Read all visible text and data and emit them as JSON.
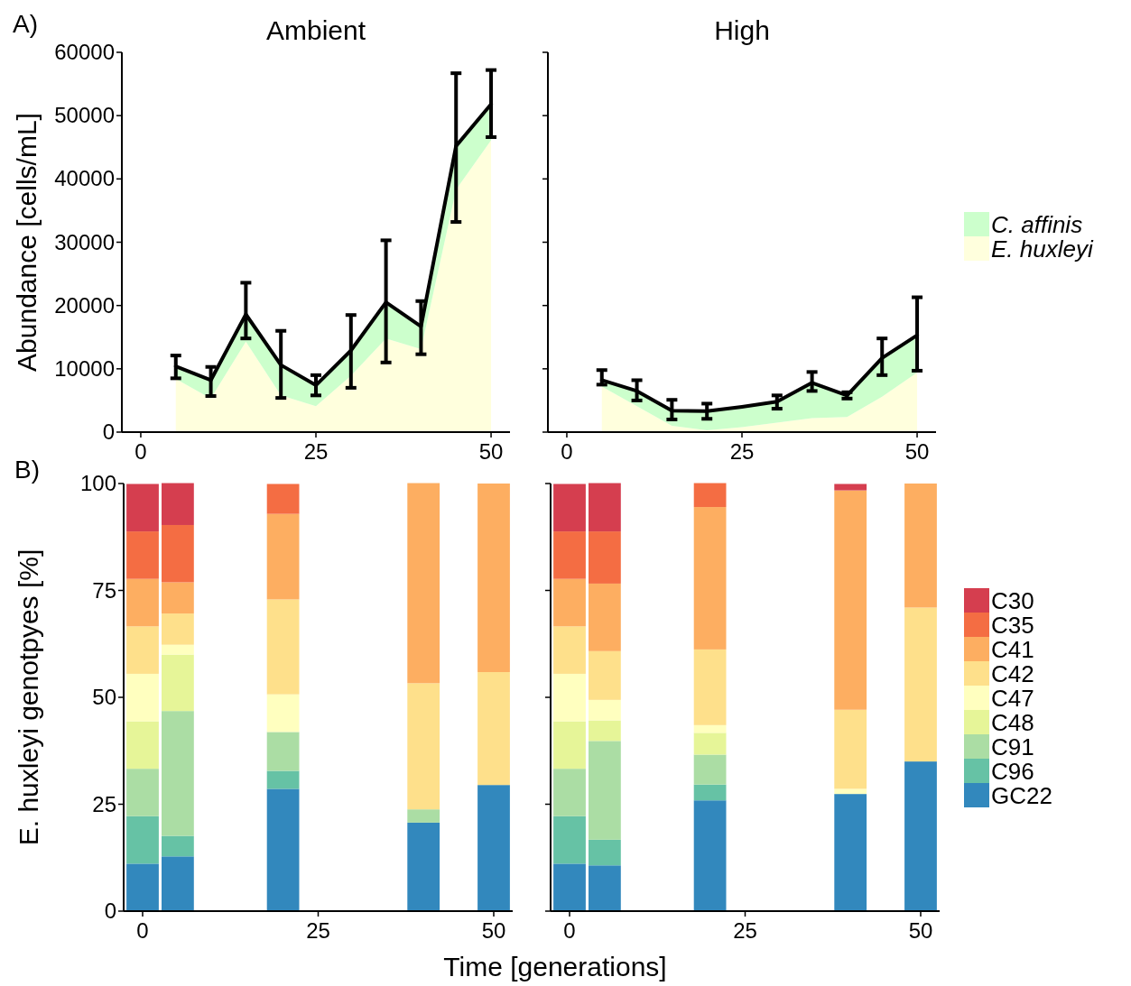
{
  "chart_data": [
    {
      "type": "area",
      "title": "Ambient",
      "ylabel": "Abundance [cells/mL]",
      "annotations": [
        "A)"
      ],
      "stacked": true,
      "x": [
        5,
        10,
        15,
        20,
        25,
        30,
        35,
        40,
        45,
        50
      ],
      "xlim": [
        -2.7,
        52.7
      ],
      "xticks": [
        0,
        25,
        50
      ],
      "ylim": [
        0,
        60000
      ],
      "yticks": [
        0,
        10000,
        20000,
        30000,
        40000,
        50000,
        60000
      ],
      "series": [
        {
          "color": "#ffffdd",
          "values": [
            8400,
            5300,
            14300,
            5800,
            4100,
            8900,
            14800,
            13100,
            38300,
            46100
          ]
        },
        {
          "color": "#ccffcc",
          "values": [
            2000,
            2900,
            4300,
            4800,
            3300,
            4000,
            5700,
            3600,
            6900,
            5700
          ],
          "errors": [
            [
              8500,
              12100
            ],
            [
              5700,
              10300
            ],
            [
              14800,
              23600
            ],
            [
              5400,
              16000
            ],
            [
              5800,
              9000
            ],
            [
              7000,
              18500
            ],
            [
              11000,
              30300
            ],
            [
              12300,
              20700
            ],
            [
              33200,
              56700
            ],
            [
              46600,
              57200
            ]
          ]
        }
      ]
    },
    {
      "type": "area",
      "title": "High",
      "stacked": true,
      "legend": "right",
      "tick_labels": "x",
      "x": [
        5,
        10,
        15,
        20,
        25,
        30,
        35,
        40,
        45,
        50
      ],
      "xlim": [
        -2.7,
        52.7
      ],
      "xticks": [
        0,
        25,
        50
      ],
      "ylim": [
        0,
        60000
      ],
      "yticks": [
        0,
        10000,
        20000,
        30000,
        40000,
        50000,
        60000
      ],
      "series": [
        {
          "name": "E. huxleyi",
          "color": "#ffffdd",
          "values": [
            7200,
            4100,
            1000,
            300,
            800,
            1500,
            2200,
            2400,
            5600,
            9400
          ]
        },
        {
          "name": "C. affinis",
          "color": "#ccffcc",
          "values": [
            1000,
            2400,
            2400,
            3000,
            3200,
            3300,
            5600,
            3400,
            6100,
            5900
          ],
          "errors": [
            [
              7500,
              9800
            ],
            [
              5000,
              8200
            ],
            [
              2000,
              5100
            ],
            [
              2100,
              4500
            ],
            null,
            [
              3700,
              5800
            ],
            [
              6500,
              9500
            ],
            [
              5300,
              6300
            ],
            [
              9000,
              14800
            ],
            [
              9700,
              21300
            ]
          ]
        }
      ]
    },
    {
      "type": "bar",
      "ylabel": "E. huxleyi genotpyes [%]",
      "xlabel": "Time [generations]",
      "annotations": [
        "B)"
      ],
      "stacked": true,
      "x": [
        0,
        5,
        20,
        40,
        50
      ],
      "xlim": [
        -2.7,
        52.7
      ],
      "xticks": [
        0,
        25,
        50
      ],
      "ylim": [
        0,
        100
      ],
      "yticks": [
        0,
        25,
        50,
        75,
        100
      ],
      "series": [
        {
          "color": "#3288bd",
          "values": [
            11.1,
            12.8,
            28.6,
            20.7,
            29.5
          ]
        },
        {
          "color": "#66c2a5",
          "values": [
            11.1,
            4.8,
            4.2,
            0,
            0
          ]
        },
        {
          "color": "#abdda4",
          "values": [
            11.1,
            29.2,
            9.1,
            3.1,
            0
          ]
        },
        {
          "color": "#e6f598",
          "values": [
            11.1,
            13.2,
            0,
            0,
            0
          ]
        },
        {
          "color": "#ffffbf",
          "values": [
            11.1,
            2.3,
            8.8,
            0,
            0
          ]
        },
        {
          "color": "#fee08b",
          "values": [
            11.1,
            7.3,
            22.2,
            29.5,
            26.4
          ]
        },
        {
          "color": "#fdae61",
          "values": [
            11.1,
            7.3,
            20.0,
            46.8,
            44.1
          ]
        },
        {
          "color": "#f46d43",
          "values": [
            11.1,
            13.4,
            7.0,
            0,
            0
          ]
        },
        {
          "color": "#d53e4f",
          "values": [
            11.1,
            9.8,
            0,
            0,
            0
          ]
        }
      ]
    },
    {
      "type": "bar",
      "stacked": true,
      "legend": "right",
      "tick_labels": "x",
      "x": [
        0,
        5,
        20,
        40,
        50
      ],
      "xlim": [
        -2.7,
        52.7
      ],
      "xticks": [
        0,
        25,
        50
      ],
      "ylim": [
        0,
        100
      ],
      "yticks": [
        0,
        25,
        50,
        75,
        100
      ],
      "series": [
        {
          "name": "GC22",
          "color": "#3288bd",
          "values": [
            11.1,
            10.7,
            25.9,
            27.4,
            35.0
          ]
        },
        {
          "name": "C96",
          "color": "#66c2a5",
          "values": [
            11.1,
            6.0,
            3.7,
            0,
            0
          ]
        },
        {
          "name": "C91",
          "color": "#abdda4",
          "values": [
            11.1,
            23.1,
            7.0,
            0,
            0
          ]
        },
        {
          "name": "C48",
          "color": "#e6f598",
          "values": [
            11.1,
            4.8,
            5.1,
            0,
            0
          ]
        },
        {
          "name": "C47",
          "color": "#ffffbf",
          "values": [
            11.1,
            4.8,
            1.8,
            1.2,
            0
          ]
        },
        {
          "name": "C42",
          "color": "#fee08b",
          "values": [
            11.1,
            11.4,
            17.7,
            18.5,
            36.0
          ]
        },
        {
          "name": "C41",
          "color": "#fdae61",
          "values": [
            11.1,
            15.8,
            33.3,
            51.3,
            29.0
          ]
        },
        {
          "name": "C35",
          "color": "#f46d43",
          "values": [
            11.1,
            12.2,
            5.6,
            0,
            0
          ]
        },
        {
          "name": "C30",
          "color": "#d53e4f",
          "values": [
            11.1,
            11.3,
            0,
            1.5,
            0
          ]
        }
      ]
    }
  ]
}
